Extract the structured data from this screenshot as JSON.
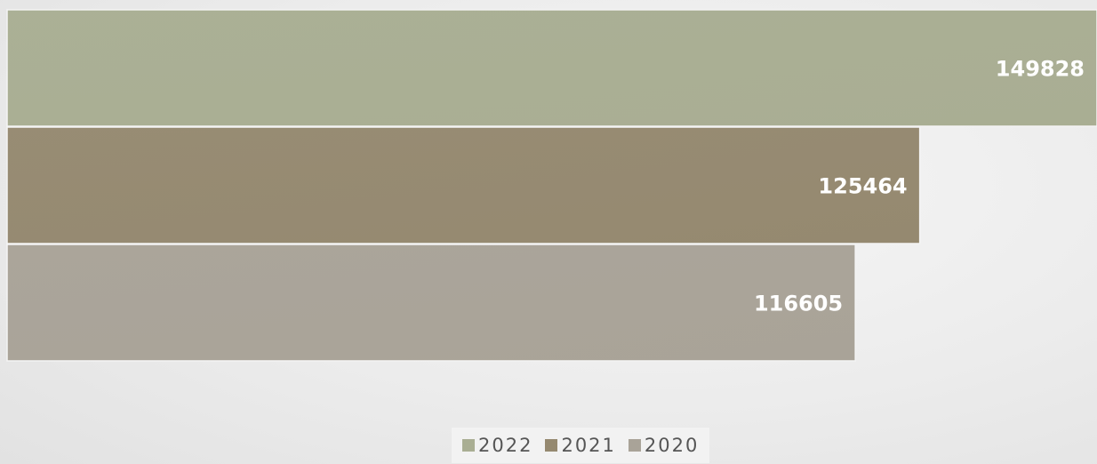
{
  "chart_data": {
    "type": "bar",
    "orientation": "horizontal",
    "categories": [
      "2022",
      "2021",
      "2020"
    ],
    "values": [
      149828,
      125464,
      116605
    ],
    "colors": [
      "#a9ae93",
      "#958970",
      "#a9a398"
    ],
    "title": "",
    "xlabel": "",
    "ylabel": "",
    "xlim": [
      0,
      149828
    ],
    "grid": false,
    "data_labels": true,
    "legend": {
      "position": "bottom",
      "entries": [
        "2022",
        "2021",
        "2020"
      ]
    }
  }
}
